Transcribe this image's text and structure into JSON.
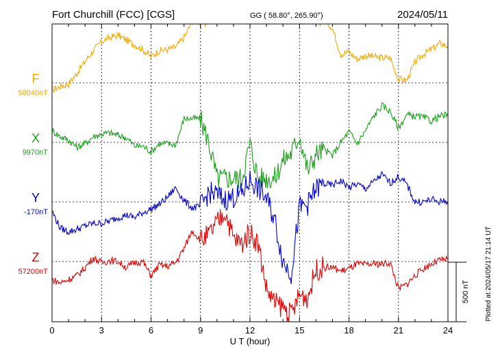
{
  "header": {
    "station": "Fort Churchill (FCC)  [CGS]",
    "coords": "GG ( 58.80°, 265.90°)",
    "date": "2024/05/11"
  },
  "footer": {
    "plotted": "Plotted at 2024/05/17 21:14 UT",
    "scale": "500 nT"
  },
  "chart_data": {
    "type": "line",
    "xlabel": "U T (hour)",
    "xlim": [
      0,
      24
    ],
    "xticks": [
      "0",
      "3",
      "6",
      "9",
      "12",
      "15",
      "18",
      "21",
      "24"
    ],
    "grid": true,
    "series": [
      {
        "name": "F",
        "baseline": "58040nT",
        "color": "#f5a800",
        "x": [
          0,
          0.5,
          1,
          1.5,
          2,
          2.5,
          3,
          3.5,
          4,
          4.5,
          5,
          5.5,
          6,
          6.5,
          7,
          7.5,
          8,
          8.5,
          9,
          9.5,
          10,
          10.5,
          11,
          11.5,
          12,
          12.5,
          13,
          13.5,
          14,
          14.5,
          15,
          15.5,
          16,
          16.5,
          17,
          17.5,
          18,
          18.5,
          19,
          19.5,
          20,
          20.5,
          21,
          21.5,
          22,
          22.5,
          23,
          23.5,
          24
        ],
        "y": [
          -60,
          -30,
          -10,
          80,
          180,
          270,
          345,
          380,
          400,
          360,
          320,
          280,
          220,
          270,
          280,
          300,
          380,
          520,
          510,
          560,
          590,
          590,
          590,
          590,
          590,
          590,
          590,
          590,
          590,
          590,
          590,
          590,
          590,
          540,
          460,
          240,
          260,
          200,
          230,
          220,
          210,
          210,
          30,
          20,
          170,
          240,
          280,
          330,
          310
        ]
      },
      {
        "name": "X",
        "baseline": "9970nT",
        "color": "#1aa01a",
        "x": [
          0,
          0.5,
          1,
          1.5,
          2,
          2.5,
          3,
          3.5,
          4,
          4.5,
          5,
          5.5,
          6,
          6.5,
          7,
          7.5,
          8,
          8.5,
          9,
          9.5,
          10,
          10.5,
          11,
          11.5,
          12,
          12.5,
          13,
          13.5,
          14,
          14.5,
          15,
          15.5,
          16,
          16.5,
          17,
          17.5,
          18,
          18.5,
          19,
          19.5,
          20,
          20.5,
          21,
          21.5,
          22,
          22.5,
          23,
          23.5,
          24
        ],
        "y": [
          100,
          50,
          20,
          -40,
          -10,
          50,
          70,
          80,
          60,
          40,
          -30,
          -30,
          -80,
          -10,
          -10,
          -20,
          200,
          200,
          200,
          0,
          -300,
          -300,
          -300,
          -300,
          -10,
          -300,
          -300,
          -300,
          -150,
          -90,
          60,
          -240,
          -100,
          -60,
          -110,
          0,
          90,
          -10,
          100,
          220,
          310,
          260,
          120,
          230,
          220,
          210,
          180,
          220,
          230
        ]
      },
      {
        "name": "Y",
        "baseline": "-170nT",
        "color": "#0000cc",
        "x": [
          0,
          0.5,
          1,
          1.5,
          2,
          2.5,
          3,
          3.5,
          4,
          4.5,
          5,
          5.5,
          6,
          6.5,
          7,
          7.5,
          8,
          8.5,
          9,
          9.5,
          10,
          10.5,
          11,
          11.5,
          12,
          12.5,
          13,
          13.5,
          14,
          14.5,
          15,
          15.5,
          16,
          16.5,
          17,
          17.5,
          18,
          18.5,
          19,
          19.5,
          20,
          20.5,
          21,
          21.5,
          22,
          22.5,
          23,
          23.5,
          24
        ],
        "y": [
          -80,
          -220,
          -250,
          -230,
          -200,
          -180,
          -180,
          -160,
          -130,
          -110,
          -130,
          -90,
          -60,
          -20,
          40,
          120,
          10,
          -50,
          -40,
          80,
          60,
          20,
          40,
          70,
          190,
          110,
          30,
          -150,
          -500,
          -600,
          -50,
          -20,
          110,
          150,
          140,
          180,
          120,
          150,
          110,
          170,
          230,
          160,
          210,
          150,
          0,
          0,
          20,
          0,
          10
        ]
      },
      {
        "name": "Z",
        "baseline": "57200nT",
        "color": "#dd0000",
        "x": [
          0,
          0.5,
          1,
          1.5,
          2,
          2.5,
          3,
          3.5,
          4,
          4.5,
          5,
          5.5,
          6,
          6.5,
          7,
          7.5,
          8,
          8.5,
          9,
          9.5,
          10,
          10.5,
          11,
          11.5,
          12,
          12.5,
          13,
          13.5,
          14,
          14.5,
          15,
          15.5,
          16,
          16.5,
          17,
          17.5,
          18,
          18.5,
          19,
          19.5,
          20,
          20.5,
          21,
          21.5,
          22,
          22.5,
          23,
          23.5,
          24
        ],
        "y": [
          -150,
          -180,
          -150,
          -120,
          -50,
          30,
          -10,
          10,
          0,
          -50,
          -10,
          0,
          -120,
          -30,
          -40,
          -10,
          110,
          260,
          180,
          220,
          320,
          420,
          190,
          150,
          250,
          150,
          -230,
          -350,
          -380,
          -450,
          -280,
          -300,
          -70,
          -50,
          -50,
          -80,
          -60,
          -20,
          -30,
          -20,
          -20,
          -10,
          -230,
          -190,
          -120,
          -60,
          -20,
          10,
          20
        ]
      }
    ],
    "scale_bar_nT": 500
  }
}
